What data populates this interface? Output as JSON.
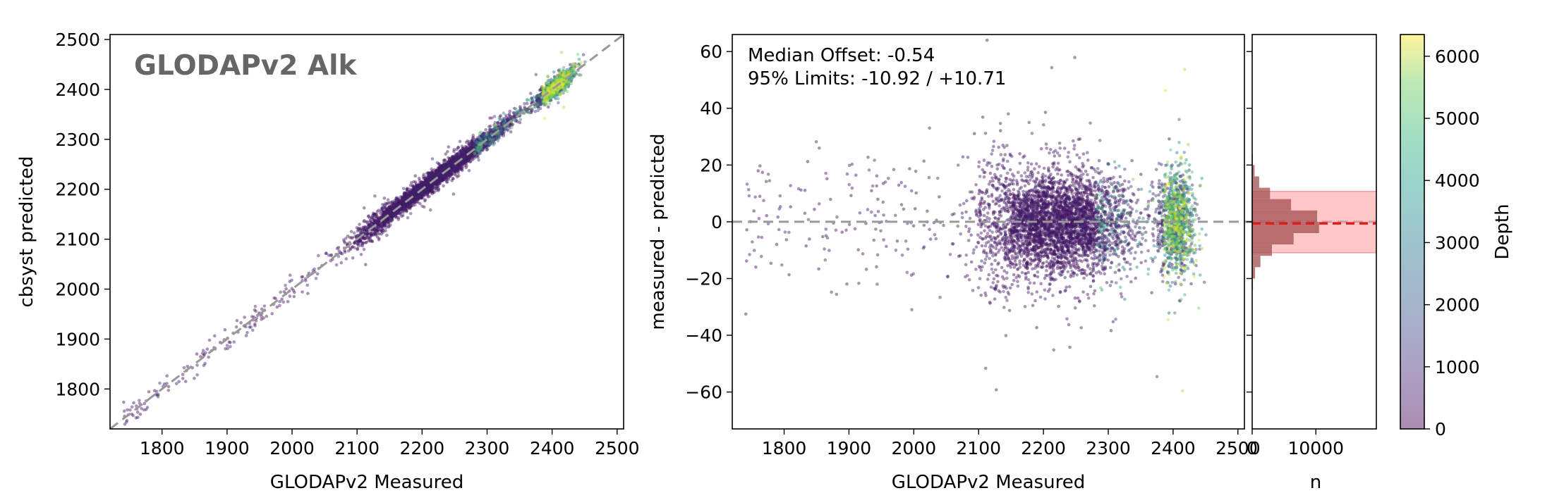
{
  "chart_data": [
    {
      "type": "scatter",
      "title": "GLODAPv2 Alk",
      "xlabel": "GLODAPv2 Measured",
      "ylabel": "cbsyst predicted",
      "xlim": [
        1720,
        2510
      ],
      "ylim": [
        1720,
        2510
      ],
      "x_ticks": [
        1800,
        1900,
        2000,
        2100,
        2200,
        2300,
        2400,
        2500
      ],
      "y_ticks": [
        1800,
        1900,
        2000,
        2100,
        2200,
        2300,
        2400,
        2500
      ],
      "reference_line": "1:1",
      "color_by": "Depth"
    },
    {
      "type": "scatter",
      "xlabel": "GLODAPv2 Measured",
      "ylabel": "measured - predicted",
      "xlim": [
        1720,
        2510
      ],
      "ylim": [
        -73,
        66
      ],
      "x_ticks": [
        1800,
        1900,
        2000,
        2100,
        2200,
        2300,
        2400,
        2500
      ],
      "y_ticks": [
        -60,
        -40,
        -20,
        0,
        20,
        40,
        60
      ],
      "reference_line": 0,
      "annotations": [
        "Median Offset: -0.54",
        "95% Limits: -10.92 / +10.71"
      ],
      "median_offset": -0.54,
      "limits_95": [
        -10.92,
        10.71
      ],
      "color_by": "Depth"
    },
    {
      "type": "bar",
      "orientation": "horizontal",
      "xlabel": "n",
      "x_ticks": [
        0,
        10000
      ],
      "xlim": [
        0,
        19500
      ],
      "shared_y_with": "measured - predicted",
      "median_line": -0.54,
      "band": [
        -10.92,
        10.71
      ],
      "bins": [
        {
          "y": -22,
          "n": 120
        },
        {
          "y": -18,
          "n": 450
        },
        {
          "y": -14,
          "n": 1300
        },
        {
          "y": -10,
          "n": 3100
        },
        {
          "y": -6,
          "n": 6500
        },
        {
          "y": -2,
          "n": 10500
        },
        {
          "y": 2,
          "n": 10200
        },
        {
          "y": 6,
          "n": 6100
        },
        {
          "y": 10,
          "n": 2800
        },
        {
          "y": 14,
          "n": 1100
        },
        {
          "y": 18,
          "n": 380
        },
        {
          "y": 22,
          "n": 100
        }
      ]
    },
    {
      "type": "colorbar",
      "label": "Depth",
      "range": [
        0,
        6350
      ],
      "ticks": [
        0,
        1000,
        2000,
        3000,
        4000,
        5000,
        6000
      ],
      "colormap": "viridis"
    }
  ],
  "colors": {
    "low_depth": "#440154",
    "mid_depth": "#21908d",
    "high_depth": "#fde725",
    "reference_line": "#999999",
    "median_line": "#e31a1c",
    "band_fill": "#ff9999",
    "hist_fill": "#a05050",
    "title_gray": "#666666"
  }
}
